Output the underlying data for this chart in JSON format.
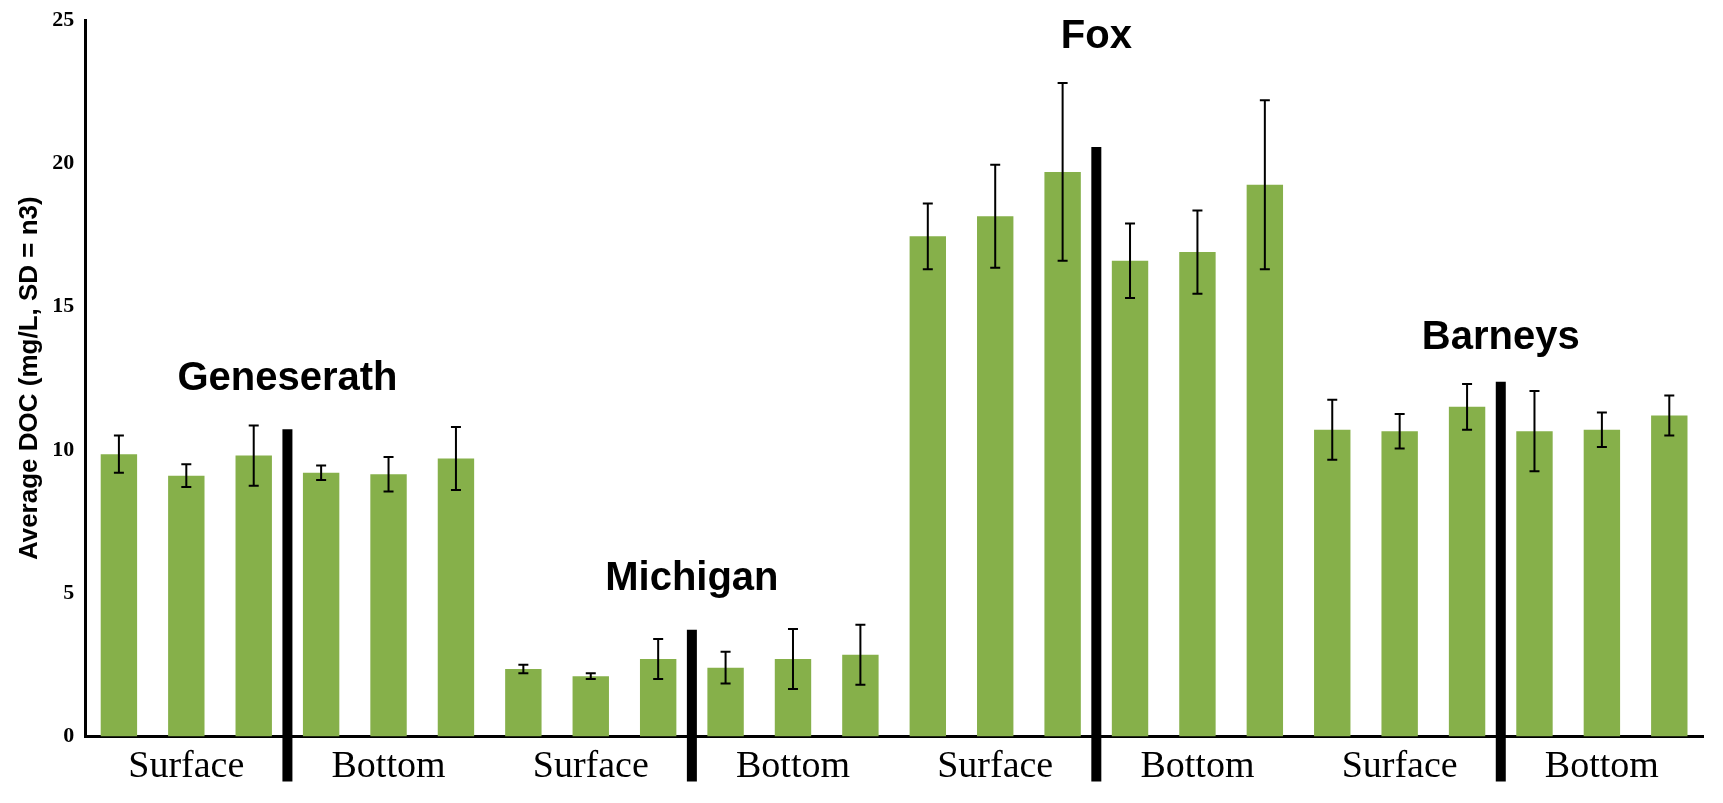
{
  "chart_data": {
    "type": "bar",
    "ylabel": "Average DOC (mg/L, SD = n3)",
    "categories": [
      null,
      "Surface",
      null,
      null,
      "Bottom",
      null,
      null,
      "Surface",
      null,
      null,
      "Bottom",
      null,
      null,
      "Surface",
      null,
      null,
      "Bottom",
      null,
      null,
      "Surface",
      null,
      null,
      "Bottom",
      null
    ],
    "values": [
      9.85,
      9.1,
      9.8,
      9.2,
      9.15,
      9.7,
      2.35,
      2.1,
      2.7,
      2.4,
      2.7,
      2.85,
      17.45,
      18.15,
      19.7,
      16.6,
      16.9,
      19.25,
      10.7,
      10.65,
      11.5,
      10.65,
      10.7,
      11.2
    ],
    "errors": [
      0.65,
      0.4,
      1.05,
      0.25,
      0.6,
      1.1,
      0.15,
      0.1,
      0.7,
      0.55,
      1.05,
      1.05,
      1.15,
      1.8,
      3.1,
      1.3,
      1.45,
      2.95,
      1.05,
      0.6,
      0.8,
      1.4,
      0.6,
      0.7
    ],
    "color": "#86b04a",
    "ylim": [
      0,
      25
    ],
    "yticks": [
      0,
      5,
      10,
      15,
      20,
      25
    ],
    "grid": false,
    "annotations": [
      "Geneserath",
      "Michigan",
      "Fox",
      "Barneys"
    ]
  }
}
